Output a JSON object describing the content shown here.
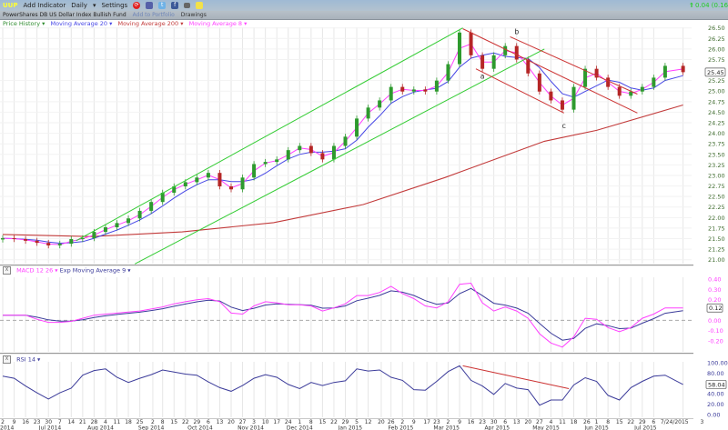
{
  "toolbar": {
    "symbol": "UUP",
    "add_indicator": "Add Indicator",
    "period": "Daily",
    "period_arrow": "▾",
    "settings": "Settings",
    "icons": [
      "refresh-icon",
      "print-icon",
      "twitter-icon",
      "facebook-icon",
      "camera-icon",
      "sticky-note-icon"
    ],
    "change_text": "0.04 (0.16%",
    "change_color": "#22cc22"
  },
  "subbar": {
    "fund_name": "PowerShares DB US Dollar Index Bullish Fund",
    "add_to_portfolio": "Add to Portfolio",
    "drawings": "Drawings"
  },
  "legend": {
    "price_history": "Price History ▾",
    "ma20": "Moving Average 20 ▾",
    "ma200": "Moving Average 200 ▾",
    "ma8": "Moving Average 8 ▾"
  },
  "colors": {
    "up": "#2e9a2e",
    "down": "#b52626",
    "ma20": "#4747e6",
    "ma200": "#c23a3a",
    "ma8": "#ff40ff",
    "macd": "#ff40ff",
    "signal": "#3b3b9a",
    "rsi": "#3b3b9a",
    "channel": "#33cc33",
    "trendline": "#cc3333",
    "price_axis": "#3f6b2e",
    "macd_axis": "#ff40ff",
    "rsi_axis": "#3b3b9a"
  },
  "macd_panel": {
    "close_icon": "X",
    "title": "MACD 12 26 ▾",
    "signal_title": "Exp Moving Average 9 ▾"
  },
  "rsi_panel": {
    "close_icon": "X",
    "title": "RSI 14 ▾"
  },
  "chart_data": {
    "type": "line",
    "dates": [
      "2014-06-02",
      "2014-06-09",
      "2014-06-16",
      "2014-06-23",
      "2014-06-30",
      "2014-07-07",
      "2014-07-14",
      "2014-07-21",
      "2014-07-28",
      "2014-08-04",
      "2014-08-11",
      "2014-08-18",
      "2014-08-25",
      "2014-09-01",
      "2014-09-08",
      "2014-09-15",
      "2014-09-22",
      "2014-09-29",
      "2014-10-06",
      "2014-10-13",
      "2014-10-20",
      "2014-10-27",
      "2014-11-03",
      "2014-11-10",
      "2014-11-17",
      "2014-11-24",
      "2014-12-01",
      "2014-12-08",
      "2014-12-15",
      "2014-12-22",
      "2014-12-29",
      "2015-01-05",
      "2015-01-12",
      "2015-01-19",
      "2015-01-26",
      "2015-02-02",
      "2015-02-09",
      "2015-02-16",
      "2015-02-23",
      "2015-03-02",
      "2015-03-09",
      "2015-03-16",
      "2015-03-23",
      "2015-03-30",
      "2015-04-06",
      "2015-04-13",
      "2015-04-20",
      "2015-04-27",
      "2015-05-04",
      "2015-05-11",
      "2015-05-18",
      "2015-05-25",
      "2015-06-01",
      "2015-06-08",
      "2015-06-15",
      "2015-06-22",
      "2015-06-29",
      "2015-07-06",
      "2015-07-13",
      "2015-07-24"
    ],
    "xlim": [
      "2014-06-02",
      "2015-08-03"
    ],
    "x_ticks": [
      {
        "date": "2014-06-02",
        "label": "2"
      },
      {
        "date": "2014-06-09",
        "label": "9"
      },
      {
        "date": "2014-06-16",
        "label": "16"
      },
      {
        "date": "2014-06-23",
        "label": "23"
      },
      {
        "date": "2014-06-30",
        "label": "30"
      },
      {
        "date": "2014-07-07",
        "label": "7"
      },
      {
        "date": "2014-07-14",
        "label": "14"
      },
      {
        "date": "2014-07-21",
        "label": "21"
      },
      {
        "date": "2014-07-28",
        "label": "28"
      },
      {
        "date": "2014-08-04",
        "label": "4"
      },
      {
        "date": "2014-08-11",
        "label": "11"
      },
      {
        "date": "2014-08-18",
        "label": "18"
      },
      {
        "date": "2014-08-25",
        "label": "25"
      },
      {
        "date": "2014-09-02",
        "label": "2"
      },
      {
        "date": "2014-09-08",
        "label": "8"
      },
      {
        "date": "2014-09-15",
        "label": "15"
      },
      {
        "date": "2014-09-22",
        "label": "22"
      },
      {
        "date": "2014-09-29",
        "label": "29"
      },
      {
        "date": "2014-10-06",
        "label": "6"
      },
      {
        "date": "2014-10-13",
        "label": "13"
      },
      {
        "date": "2014-10-20",
        "label": "20"
      },
      {
        "date": "2014-10-27",
        "label": "27"
      },
      {
        "date": "2014-11-03",
        "label": "3"
      },
      {
        "date": "2014-11-10",
        "label": "10"
      },
      {
        "date": "2014-11-17",
        "label": "17"
      },
      {
        "date": "2014-11-24",
        "label": "24"
      },
      {
        "date": "2014-12-01",
        "label": "1"
      },
      {
        "date": "2014-12-08",
        "label": "8"
      },
      {
        "date": "2014-12-15",
        "label": "15"
      },
      {
        "date": "2014-12-22",
        "label": "22"
      },
      {
        "date": "2014-12-29",
        "label": "29"
      },
      {
        "date": "2015-01-05",
        "label": "5"
      },
      {
        "date": "2015-01-12",
        "label": "12"
      },
      {
        "date": "2015-01-20",
        "label": "20"
      },
      {
        "date": "2015-01-26",
        "label": "26"
      },
      {
        "date": "2015-02-02",
        "label": "2"
      },
      {
        "date": "2015-02-09",
        "label": "9"
      },
      {
        "date": "2015-02-17",
        "label": "17"
      },
      {
        "date": "2015-02-23",
        "label": "23"
      },
      {
        "date": "2015-03-02",
        "label": "2"
      },
      {
        "date": "2015-03-09",
        "label": "9"
      },
      {
        "date": "2015-03-16",
        "label": "16"
      },
      {
        "date": "2015-03-23",
        "label": "23"
      },
      {
        "date": "2015-03-30",
        "label": "30"
      },
      {
        "date": "2015-04-06",
        "label": "6"
      },
      {
        "date": "2015-04-13",
        "label": "13"
      },
      {
        "date": "2015-04-20",
        "label": "20"
      },
      {
        "date": "2015-04-27",
        "label": "27"
      },
      {
        "date": "2015-05-04",
        "label": "4"
      },
      {
        "date": "2015-05-11",
        "label": "11"
      },
      {
        "date": "2015-05-18",
        "label": "18"
      },
      {
        "date": "2015-05-26",
        "label": "26"
      },
      {
        "date": "2015-06-01",
        "label": "1"
      },
      {
        "date": "2015-06-08",
        "label": "8"
      },
      {
        "date": "2015-06-15",
        "label": "15"
      },
      {
        "date": "2015-06-22",
        "label": "22"
      },
      {
        "date": "2015-06-29",
        "label": "29"
      },
      {
        "date": "2015-07-06",
        "label": "6"
      },
      {
        "date": "2015-07-24",
        "label": "7/24/2015"
      },
      {
        "date": "2015-08-03",
        "label": "3"
      }
    ],
    "month_labels": [
      {
        "date": "2014-06-02",
        "label": "2014"
      },
      {
        "date": "2014-07-01",
        "label": "Jul 2014"
      },
      {
        "date": "2014-08-01",
        "label": "Aug 2014"
      },
      {
        "date": "2014-09-01",
        "label": "Sep 2014"
      },
      {
        "date": "2014-10-01",
        "label": "Oct 2014"
      },
      {
        "date": "2014-11-01",
        "label": "Nov 2014"
      },
      {
        "date": "2014-12-01",
        "label": "Dec 2014"
      },
      {
        "date": "2015-01-01",
        "label": "Jan 2015"
      },
      {
        "date": "2015-02-01",
        "label": "Feb 2015"
      },
      {
        "date": "2015-03-01",
        "label": "Mar 2015"
      },
      {
        "date": "2015-04-01",
        "label": "Apr 2015"
      },
      {
        "date": "2015-05-01",
        "label": "May 2015"
      },
      {
        "date": "2015-06-01",
        "label": "Jun 2015"
      },
      {
        "date": "2015-07-01",
        "label": "Jul 2015"
      }
    ],
    "price": {
      "ylim": [
        21.0,
        26.5
      ],
      "y_ticks": [
        "26.50",
        "26.25",
        "26.00",
        "25.75",
        "25.25",
        "25.00",
        "24.75",
        "24.50",
        "24.25",
        "24.00",
        "23.75",
        "23.50",
        "23.25",
        "23.00",
        "22.75",
        "22.50",
        "22.25",
        "22.00",
        "21.75",
        "21.50",
        "21.25",
        "21.00"
      ],
      "last": "25.45",
      "close": [
        21.51,
        21.49,
        21.45,
        21.4,
        21.34,
        21.38,
        21.49,
        21.51,
        21.66,
        21.77,
        21.87,
        21.98,
        22.16,
        22.37,
        22.59,
        22.74,
        22.84,
        22.95,
        23.06,
        22.74,
        22.67,
        22.95,
        23.27,
        23.32,
        23.38,
        23.6,
        23.7,
        23.53,
        23.38,
        23.7,
        23.92,
        24.35,
        24.61,
        24.78,
        25.1,
        24.99,
        25.04,
        24.99,
        25.25,
        25.64,
        26.39,
        25.85,
        25.53,
        25.85,
        26.07,
        25.75,
        25.42,
        24.99,
        24.78,
        24.56,
        25.1,
        25.53,
        25.32,
        25.1,
        24.89,
        24.99,
        25.1,
        25.32,
        25.6,
        25.45
      ],
      "ma200": [
        [
          "2014-06-02",
          21.6
        ],
        [
          "2014-07-26",
          21.55
        ],
        [
          "2014-09-20",
          21.66
        ],
        [
          "2014-11-15",
          21.88
        ],
        [
          "2015-01-09",
          22.31
        ],
        [
          "2015-02-28",
          22.95
        ],
        [
          "2015-04-30",
          23.81
        ],
        [
          "2015-06-01",
          24.07
        ],
        [
          "2015-07-24",
          24.67
        ]
      ],
      "channel_lines": [
        {
          "from": [
            "2014-07-17",
            21.45
          ],
          "to": [
            "2015-03-11",
            26.5
          ]
        },
        {
          "from": [
            "2014-08-22",
            20.9
          ],
          "to": [
            "2015-04-30",
            26.0
          ]
        }
      ],
      "trend_lines": [
        {
          "from": [
            "2015-03-11",
            26.48
          ],
          "to": [
            "2015-06-26",
            24.48
          ]
        },
        {
          "from": [
            "2015-04-09",
            26.29
          ],
          "to": [
            "2015-06-26",
            24.93
          ]
        },
        {
          "from": [
            "2015-03-19",
            25.53
          ],
          "to": [
            "2015-05-12",
            24.48
          ]
        }
      ],
      "annotations": [
        {
          "label": "a",
          "date": "2015-03-23",
          "price": 25.3
        },
        {
          "label": "b",
          "date": "2015-04-13",
          "price": 26.35
        },
        {
          "label": "c",
          "date": "2015-05-12",
          "price": 24.12
        }
      ]
    },
    "macd": {
      "ylim": [
        -0.3,
        0.45
      ],
      "y_ticks": [
        "0.40",
        "0.30",
        "0.20",
        "0.00",
        "-0.10",
        "-0.20"
      ],
      "last": "0.12",
      "values": [
        0.05,
        0.05,
        0.05,
        0.01,
        -0.02,
        -0.02,
        -0.01,
        0.02,
        0.05,
        0.06,
        0.07,
        0.08,
        0.09,
        0.11,
        0.13,
        0.16,
        0.18,
        0.2,
        0.21,
        0.18,
        0.07,
        0.06,
        0.14,
        0.18,
        0.17,
        0.15,
        0.15,
        0.14,
        0.09,
        0.12,
        0.16,
        0.24,
        0.24,
        0.27,
        0.33,
        0.26,
        0.21,
        0.14,
        0.12,
        0.18,
        0.35,
        0.36,
        0.17,
        0.09,
        0.13,
        0.09,
        0.02,
        -0.13,
        -0.22,
        -0.26,
        -0.16,
        0.02,
        0.01,
        -0.07,
        -0.11,
        -0.07,
        0.02,
        0.06,
        0.12,
        0.12
      ]
    },
    "rsi": {
      "ylim": [
        0,
        100
      ],
      "y_ticks": [
        "100.00",
        "80.00",
        "40.00",
        "20.00",
        "0.00"
      ],
      "last": "58.04",
      "values": [
        74,
        70,
        55,
        42,
        30,
        42,
        51,
        76,
        85,
        88,
        72,
        62,
        70,
        77,
        86,
        82,
        78,
        76,
        63,
        52,
        45,
        56,
        70,
        77,
        72,
        58,
        50,
        62,
        56,
        62,
        65,
        88,
        84,
        86,
        72,
        66,
        48,
        47,
        64,
        83,
        94,
        66,
        55,
        39,
        60,
        51,
        48,
        18,
        28,
        28,
        57,
        71,
        64,
        37,
        28,
        52,
        64,
        74,
        76,
        58
      ],
      "trend_line": {
        "from": [
          "2015-03-11",
          94
        ],
        "to": [
          "2015-05-15",
          50
        ]
      }
    }
  }
}
